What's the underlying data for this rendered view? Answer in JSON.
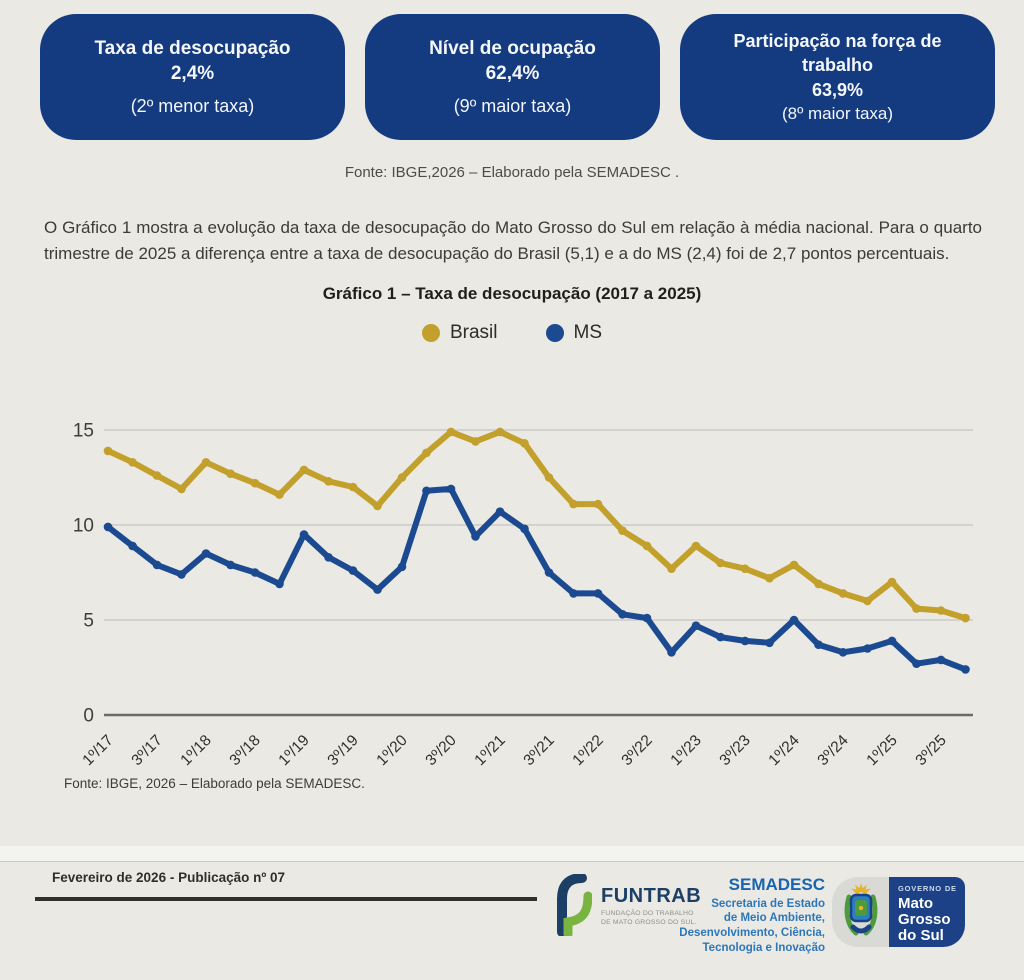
{
  "stat_cards": [
    {
      "title": "Taxa de desocupação",
      "value": "2,4%",
      "note": "(2º menor taxa)"
    },
    {
      "title": "Nível de ocupação",
      "value": "62,4%",
      "note": "(9º maior taxa)"
    },
    {
      "title": "Participação na força de trabalho",
      "value": "63,9%",
      "note": "(8º maior taxa)"
    }
  ],
  "source_top": "Fonte: IBGE,2026  – Elaborado pela SEMADESC .",
  "paragraph": "O Gráfico 1 mostra a evolução da taxa de desocupação do Mato Grosso do Sul em relação à média nacional. Para o quarto trimestre de 2025 a diferença entre a taxa de desocupação do Brasil (5,1) e a do MS (2,4) foi de 2,7 pontos percentuais.",
  "chart_data": {
    "type": "line",
    "title": "Gráfico 1 – Taxa de desocupação (2017 a 2025)",
    "x_tick_labels": [
      "1º/17",
      "3º/17",
      "1º/18",
      "3º/18",
      "1º/19",
      "3º/19",
      "1º/20",
      "3º/20",
      "1º/21",
      "3º/21",
      "1º/22",
      "3º/22",
      "1º/23",
      "3º/23",
      "1º/24",
      "3º/24",
      "1º/25",
      "3º/25"
    ],
    "x_note": "quarterly points from 1º/2017 to 4º/2025; tick label shown every 2nd quarter",
    "ylim": [
      0,
      15
    ],
    "yticks": [
      0,
      5,
      10,
      15
    ],
    "grid": true,
    "legend_position": "top",
    "series": [
      {
        "name": "Brasil",
        "color": "#C2A02B",
        "values": [
          13.9,
          13.3,
          12.6,
          11.9,
          13.3,
          12.7,
          12.2,
          11.6,
          12.9,
          12.3,
          12.0,
          11.0,
          12.5,
          13.8,
          14.9,
          14.4,
          14.9,
          14.3,
          12.5,
          11.1,
          11.1,
          9.7,
          8.9,
          7.7,
          8.9,
          8.0,
          7.7,
          7.2,
          7.9,
          6.9,
          6.4,
          6.0,
          7.0,
          5.6,
          5.5,
          5.1
        ]
      },
      {
        "name": "MS",
        "color": "#1B4A90",
        "values": [
          9.9,
          8.9,
          7.9,
          7.4,
          8.5,
          7.9,
          7.5,
          6.9,
          9.5,
          8.3,
          7.6,
          6.6,
          7.8,
          11.8,
          11.9,
          9.4,
          10.7,
          9.8,
          7.5,
          6.4,
          6.4,
          5.3,
          5.1,
          3.3,
          4.7,
          4.1,
          3.9,
          3.8,
          5.0,
          3.7,
          3.3,
          3.5,
          3.9,
          2.7,
          2.9,
          2.4
        ]
      }
    ]
  },
  "source_bottom": "Fonte: IBGE, 2026 – Elaborado pela SEMADESC.",
  "footer": {
    "publication": "Fevereiro de 2026 - Publicação nº 07",
    "funtrab": {
      "name": "FUNTRAB",
      "subtitle_line1": "FUNDAÇÃO DO TRABALHO",
      "subtitle_line2": "DE MATO GROSSO DO SUL."
    },
    "semadesc": {
      "name": "SEMADESC",
      "lines": [
        "Secretaria de Estado",
        "de Meio Ambiente,",
        "Desenvolvimento, Ciência,",
        "Tecnologia e Inovação"
      ]
    },
    "governo": {
      "top": "GOVERNO DE",
      "line1": "Mato",
      "line2": "Grosso",
      "line3": "do Sul"
    }
  },
  "colors": {
    "page_bg": "#eae9e4",
    "card_bg": "#143a80",
    "brasil_line": "#C2A02B",
    "ms_line": "#1B4A90",
    "gov_box_bg": "#1d4186"
  }
}
